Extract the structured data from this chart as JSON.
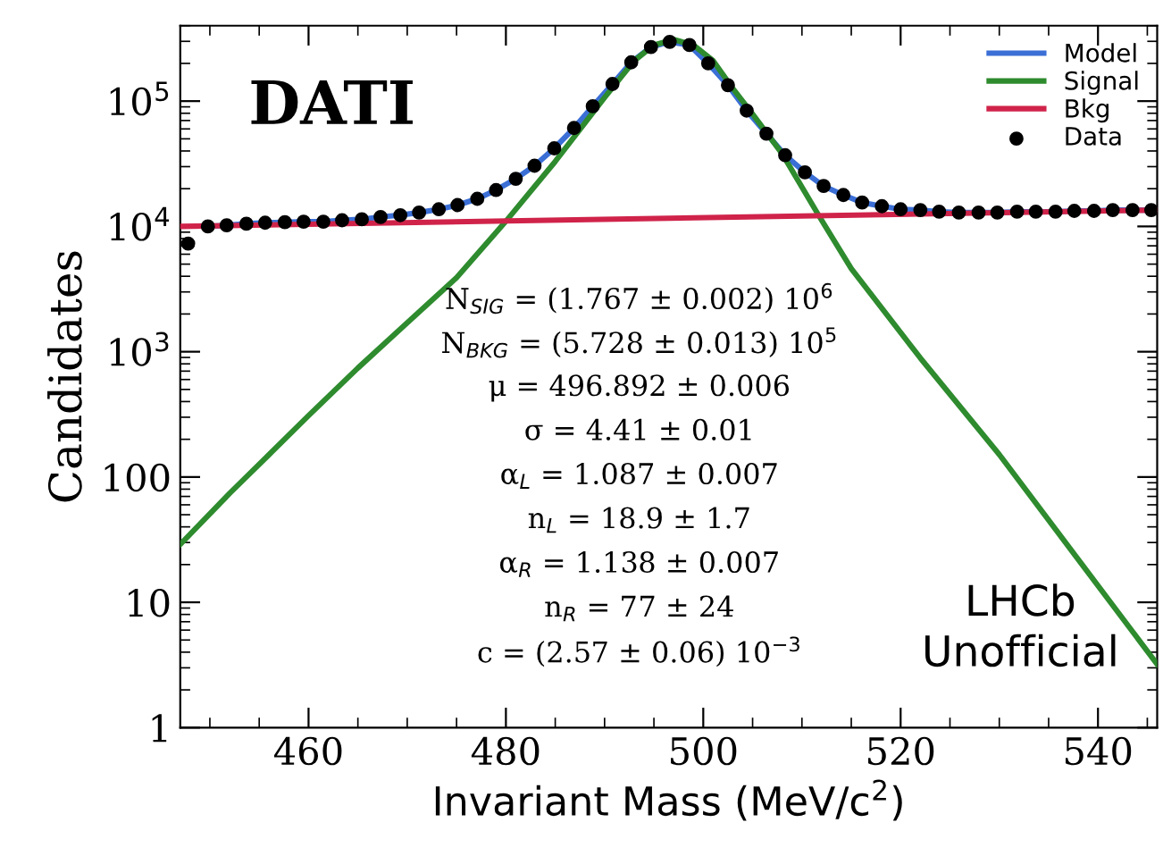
{
  "chart_data": {
    "type": "line",
    "title": "DATI",
    "xlabel": "Invariant Mass (MeV/c$^{2}$)",
    "ylabel": "Candidates",
    "log": "y",
    "xlim": [
      447,
      546
    ],
    "xticks": [
      460,
      480,
      500,
      520,
      540
    ],
    "ylim": [
      1,
      400000
    ],
    "yticks": [
      1,
      10,
      100,
      {
        "value": 1000,
        "label": "10$^{3}$"
      },
      {
        "value": 10000,
        "label": "10$^{4}$"
      },
      {
        "value": 100000,
        "label": "10$^{5}$"
      }
    ],
    "grid": false,
    "legend": "top right",
    "series": [
      {
        "name": "Model",
        "color": "#3b6fd6",
        "x": [
          449.8,
          451.7,
          453.7,
          455.6,
          457.6,
          459.5,
          461.5,
          463.4,
          465.4,
          467.3,
          469.3,
          471.2,
          473.2,
          475.1,
          477.1,
          479.0,
          481.0,
          482.9,
          484.9,
          486.9,
          488.8,
          490.8,
          492.7,
          494.7,
          496.6,
          498.6,
          500.5,
          502.5,
          504.4,
          506.4,
          508.3,
          510.3,
          512.2,
          514.2,
          516.1,
          518.1,
          520.0,
          522.0,
          523.9,
          525.9,
          527.9,
          529.8,
          531.8,
          533.7,
          535.7,
          537.6,
          539.6,
          541.5,
          543.5,
          545.4
        ],
        "values": [
          10000,
          10200,
          10500,
          10700,
          10800,
          10900,
          10900,
          11200,
          11400,
          11900,
          12300,
          12900,
          13700,
          14800,
          16600,
          19500,
          24000,
          30500,
          42000,
          61000,
          91000,
          137000,
          204000,
          270000,
          297000,
          280000,
          200000,
          134000,
          84000,
          55000,
          37000,
          27000,
          21000,
          17800,
          15500,
          14500,
          13700,
          13500,
          13100,
          12900,
          12900,
          12900,
          13100,
          13100,
          13100,
          13300,
          13300,
          13500,
          13500,
          13500
        ]
      },
      {
        "name": "Signal",
        "color": "#2e8b2e",
        "x": [
          447,
          452,
          456,
          460,
          465,
          470,
          475,
          480,
          485,
          490,
          493,
          495,
          497,
          499,
          501,
          503,
          505,
          508,
          511.6,
          515,
          522,
          530,
          538,
          546
        ],
        "values": [
          29,
          74,
          151,
          309,
          741,
          1700,
          3900,
          11000,
          33000,
          107000,
          210000,
          280000,
          310000,
          280000,
          210000,
          126000,
          79000,
          38000,
          12600,
          4600,
          890,
          151,
          22,
          3.2
        ]
      },
      {
        "name": "Bkg",
        "color": "#d0234a",
        "x": [
          447,
          546
        ],
        "values": [
          10000,
          13500
        ]
      },
      {
        "name": "Data",
        "type": "scatter",
        "color": "#000000",
        "marker": "circle",
        "x": [
          447.8,
          449.8,
          451.7,
          453.7,
          455.6,
          457.6,
          459.5,
          461.5,
          463.4,
          465.4,
          467.3,
          469.3,
          471.2,
          473.2,
          475.1,
          477.1,
          479.0,
          481.0,
          482.9,
          484.9,
          486.9,
          488.8,
          490.8,
          492.7,
          494.7,
          496.6,
          498.6,
          500.5,
          502.5,
          504.4,
          506.4,
          508.3,
          510.3,
          512.2,
          514.2,
          516.1,
          518.1,
          520.0,
          522.0,
          523.9,
          525.9,
          527.9,
          529.8,
          531.8,
          533.7,
          535.7,
          537.6,
          539.6,
          541.5,
          543.5,
          545.4
        ],
        "values": [
          7300,
          10000,
          10200,
          10500,
          10700,
          10800,
          10900,
          10900,
          11200,
          11400,
          11900,
          12300,
          12900,
          13700,
          14800,
          16600,
          19500,
          24000,
          30500,
          42000,
          61000,
          91000,
          137000,
          204000,
          270000,
          297000,
          280000,
          200000,
          134000,
          84000,
          55000,
          37000,
          27000,
          21000,
          17800,
          15500,
          14500,
          13700,
          13500,
          13100,
          12900,
          12900,
          12900,
          13100,
          13100,
          13100,
          13300,
          13300,
          13500,
          13500,
          13500
        ]
      }
    ],
    "annotations": [
      "N$_{SIG}$ = (1.767 ± 0.002) 10$^{6}$",
      "N$_{BKG}$ = (5.728 ± 0.013) 10$^{5}$",
      "μ = 496.892 ± 0.006",
      "σ = 4.41 ± 0.01",
      "α$_{L}$ = 1.087 ± 0.007",
      "n$_{L}$ = 18.9 ± 1.7",
      "α$_{R}$ = 1.138 ± 0.007",
      "n$_{R}$ = 77 ± 24",
      "c = (2.57 ± 0.06) 10$^{−3}$",
      "LHCb\nUnofficial"
    ]
  }
}
